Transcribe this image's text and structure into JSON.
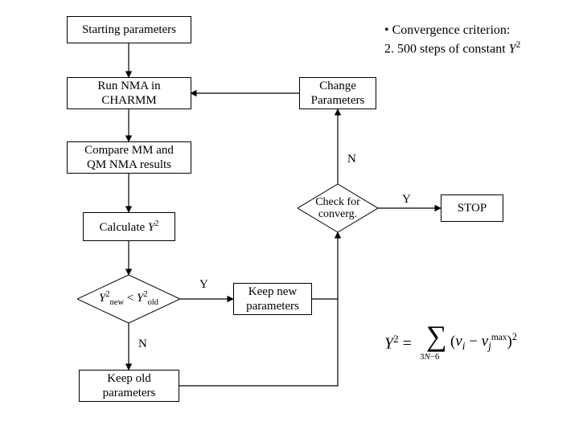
{
  "type": "flowchart",
  "background_color": "#ffffff",
  "border_color": "#000000",
  "font_family": "Times New Roman",
  "base_fontsize": 15,
  "nodes": {
    "start": {
      "label": "Starting parameters"
    },
    "run_nma": {
      "label": "Run NMA in\nCHARMM"
    },
    "compare": {
      "label": "Compare MM and\nQM NMA results"
    },
    "calc_y2": {
      "label_html": "Calculate <i>Y</i><sup>2</sup>"
    },
    "y2_test": {
      "label_html": "<i>Y</i><sup>2</sup><sub>new</sub> &lt; <i>Y</i><sup>2</sup><sub>old</sub>"
    },
    "keep_old": {
      "label": "Keep old\nparameters"
    },
    "keep_new": {
      "label": "Keep new\nparameters"
    },
    "check_conv": {
      "label": "Check for\nconverg."
    },
    "change_par": {
      "label": "Change\nParameters"
    },
    "stop": {
      "label": "STOP"
    }
  },
  "edge_labels": {
    "y2_yes": "Y",
    "y2_no": "N",
    "conv_yes": "Y",
    "conv_no": "N"
  },
  "annotations": {
    "criterion_line1": "• Convergence criterion:",
    "criterion_line2_html": "2. 500 steps of constant <i>Y</i><sup>2</sup>"
  },
  "formula": {
    "lhs_html": "<i>Y</i><sup style='font-size:0.65em'>2</sup> =",
    "sum_sub_html": "3<i>N</i>&minus;6",
    "term_html": "(<i>v<sub>i</sub></i> &minus; <i>v<sub>j</sub></i><sup style='font-size:0.6em'>max</sup>)<sup style='font-size:0.65em'>2</sup>"
  }
}
